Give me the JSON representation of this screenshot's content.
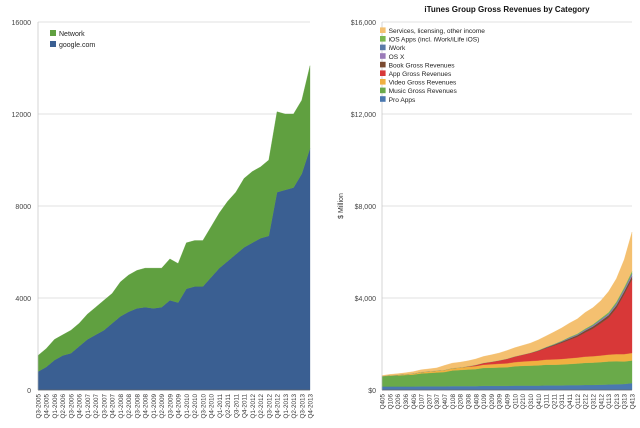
{
  "chart_data": [
    {
      "type": "area",
      "title": "",
      "xlabel": "",
      "ylabel": "",
      "ylim": [
        0,
        16000
      ],
      "yticks": [
        "0",
        "4000",
        "8000",
        "12000",
        "16000"
      ],
      "grid": true,
      "legend_position": "top-left",
      "categories": [
        "Q3-2005",
        "Q4-2005",
        "Q1-2006",
        "Q2-2006",
        "Q3-2006",
        "Q4-2006",
        "Q1-2007",
        "Q2-2007",
        "Q3-2007",
        "Q4-2007",
        "Q1-2008",
        "Q2-2008",
        "Q3-2008",
        "Q4-2008",
        "Q1-2009",
        "Q2-2009",
        "Q3-2009",
        "Q4-2009",
        "Q1-2010",
        "Q2-2010",
        "Q3-2010",
        "Q4-2010",
        "Q1-2011",
        "Q2-2011",
        "Q3-2011",
        "Q4-2011",
        "Q1-2012",
        "Q2-2012",
        "Q3-2012",
        "Q4-2012",
        "Q1-2013",
        "Q2-2013",
        "Q3-2013",
        "Q4-2013"
      ],
      "series": [
        {
          "name": "google.com",
          "color": "#3a5f92",
          "values": [
            800,
            1000,
            1300,
            1500,
            1600,
            1900,
            2200,
            2400,
            2600,
            2900,
            3200,
            3400,
            3550,
            3600,
            3550,
            3600,
            3900,
            3800,
            4400,
            4500,
            4500,
            4900,
            5300,
            5600,
            5900,
            6200,
            6400,
            6600,
            6700,
            8600,
            8700,
            8800,
            9400,
            10500
          ]
        },
        {
          "name": "Network",
          "color": "#60a040",
          "values": [
            700,
            800,
            900,
            900,
            1000,
            1000,
            1100,
            1200,
            1300,
            1300,
            1500,
            1600,
            1650,
            1700,
            1750,
            1700,
            1800,
            1700,
            2000,
            2000,
            2000,
            2200,
            2400,
            2600,
            2700,
            3000,
            3100,
            3100,
            3300,
            3500,
            3300,
            3200,
            3200,
            3600
          ]
        }
      ]
    },
    {
      "type": "area",
      "title": "iTunes Group Gross Revenues by Category",
      "xlabel": "",
      "ylabel": "$ Million",
      "ylim": [
        0,
        16000
      ],
      "yticks": [
        "$0",
        "$4,000",
        "$8,000",
        "$12,000",
        "$16,000"
      ],
      "grid": true,
      "legend_position": "top-left",
      "categories": [
        "Q405",
        "Q106",
        "Q206",
        "Q306",
        "Q406",
        "Q107",
        "Q207",
        "Q307",
        "Q407",
        "Q108",
        "Q208",
        "Q308",
        "Q408",
        "Q109",
        "Q209",
        "Q309",
        "Q409",
        "Q110",
        "Q210",
        "Q310",
        "Q410",
        "Q111",
        "Q211",
        "Q311",
        "Q411",
        "Q112",
        "Q212",
        "Q312",
        "Q412",
        "Q113",
        "Q213",
        "Q313",
        "Q413"
      ],
      "series": [
        {
          "name": "Pro Apps",
          "color": "#4a78b0",
          "values": [
            150,
            150,
            150,
            150,
            150,
            160,
            160,
            160,
            160,
            170,
            170,
            170,
            170,
            180,
            180,
            180,
            180,
            190,
            190,
            190,
            190,
            200,
            200,
            200,
            210,
            210,
            220,
            220,
            230,
            240,
            250,
            260,
            300
          ]
        },
        {
          "name": "Music Gross Revenues",
          "color": "#6aaa4a",
          "values": [
            450,
            470,
            480,
            500,
            520,
            560,
            580,
            600,
            620,
            680,
            700,
            720,
            740,
            780,
            790,
            800,
            810,
            840,
            860,
            870,
            880,
            900,
            900,
            910,
            920,
            940,
            960,
            970,
            980,
            1000,
            1000,
            980,
            980
          ]
        },
        {
          "name": "Video Gross Revenues",
          "color": "#f0b040",
          "values": [
            0,
            20,
            30,
            40,
            50,
            60,
            70,
            80,
            90,
            100,
            110,
            120,
            130,
            140,
            150,
            160,
            170,
            180,
            190,
            200,
            210,
            220,
            230,
            240,
            250,
            260,
            270,
            280,
            290,
            300,
            310,
            320,
            330
          ]
        },
        {
          "name": "App Gross Revenues",
          "color": "#d83838",
          "values": [
            0,
            0,
            0,
            0,
            0,
            0,
            0,
            0,
            0,
            0,
            0,
            20,
            50,
            80,
            110,
            150,
            200,
            250,
            300,
            350,
            420,
            500,
            600,
            700,
            800,
            900,
            1050,
            1200,
            1400,
            1600,
            2000,
            2600,
            3200
          ]
        },
        {
          "name": "Book Gross Revenues",
          "color": "#7a4a30",
          "values": [
            0,
            0,
            0,
            0,
            0,
            0,
            0,
            0,
            0,
            0,
            0,
            0,
            0,
            0,
            0,
            0,
            0,
            0,
            0,
            10,
            20,
            30,
            40,
            50,
            60,
            70,
            80,
            90,
            100,
            110,
            120,
            130,
            140
          ]
        },
        {
          "name": "OS X",
          "color": "#9a7ab8",
          "values": [
            0,
            0,
            0,
            0,
            0,
            0,
            0,
            0,
            0,
            0,
            0,
            0,
            0,
            0,
            0,
            0,
            0,
            0,
            0,
            0,
            0,
            0,
            0,
            10,
            20,
            20,
            30,
            30,
            40,
            40,
            50,
            60,
            80
          ]
        },
        {
          "name": "iWork",
          "color": "#5a7aa8",
          "values": [
            0,
            0,
            0,
            0,
            0,
            0,
            0,
            0,
            0,
            0,
            0,
            0,
            0,
            0,
            0,
            0,
            0,
            0,
            0,
            0,
            0,
            10,
            10,
            10,
            20,
            20,
            20,
            30,
            30,
            30,
            40,
            40,
            50
          ]
        },
        {
          "name": "iOS Apps (incl. iWork/iLife iOS)",
          "color": "#7ab850",
          "values": [
            0,
            0,
            0,
            0,
            0,
            0,
            0,
            0,
            0,
            0,
            0,
            0,
            0,
            0,
            0,
            0,
            0,
            0,
            0,
            0,
            10,
            10,
            20,
            20,
            30,
            30,
            40,
            40,
            50,
            60,
            70,
            80,
            90
          ]
        },
        {
          "name": "Services, licensing, other income",
          "color": "#f4c070",
          "values": [
            30,
            40,
            50,
            60,
            80,
            100,
            110,
            120,
            200,
            220,
            230,
            240,
            260,
            280,
            300,
            320,
            360,
            380,
            400,
            420,
            450,
            480,
            520,
            560,
            600,
            640,
            700,
            720,
            760,
            900,
            1000,
            1200,
            1700
          ]
        }
      ]
    }
  ]
}
